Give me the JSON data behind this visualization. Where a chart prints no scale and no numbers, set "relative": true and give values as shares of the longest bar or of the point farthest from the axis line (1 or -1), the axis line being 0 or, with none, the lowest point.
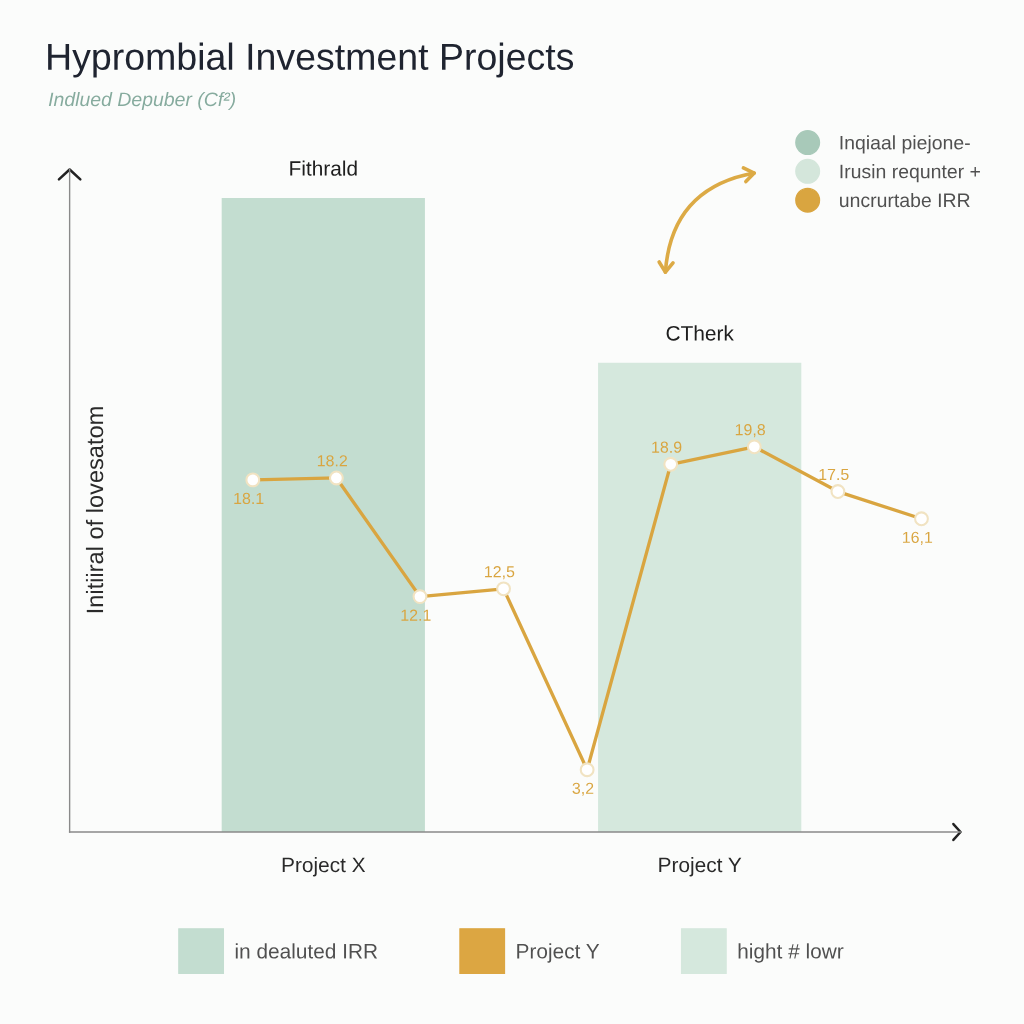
{
  "chart_data": [
    {
      "type": "bar",
      "title": "Hyprombial Investment Projects",
      "subtitle": "Indlued Depuber (Cf²)",
      "ylabel": "Initiiral of lovesatom",
      "categories": [
        "Project X",
        "Project Y"
      ],
      "relative": true,
      "legend": "bottom",
      "series": [
        {
          "name": "in dealuted IRR",
          "color": "#c3ddd0",
          "values": [
            1,
            null
          ]
        },
        {
          "name": "Project Y",
          "color": "#dca642",
          "values": [
            null,
            null
          ]
        },
        {
          "name": "hight # lowr",
          "color": "#d5e8dd",
          "values": [
            null,
            0.74
          ]
        }
      ],
      "annotations": [
        {
          "text": "Fithrald",
          "x": "Project X",
          "y": 1
        },
        {
          "text": "CTherk",
          "x": "Project Y",
          "y": 0.74
        }
      ]
    },
    {
      "type": "line",
      "categories": [
        null,
        null,
        null,
        null,
        null,
        null,
        null,
        null,
        null
      ],
      "tick_labels": false,
      "legend": "top right",
      "marker": "circle",
      "series": [
        {
          "name": "Inqiaal piejone-",
          "color": "#a8c9b9",
          "values": [
            null,
            null,
            null,
            null,
            null,
            null,
            null,
            null,
            null
          ]
        },
        {
          "name": "Irusin requnter +",
          "color": "#d4e6db",
          "values": [
            null,
            null,
            null,
            null,
            null,
            null,
            null,
            null,
            null
          ]
        },
        {
          "name": "uncrurtabe IRR",
          "color": "#d9a540",
          "values": [
            18.1,
            18.2,
            12.1,
            12.5,
            3.2,
            18.9,
            19.8,
            17.5,
            16.1
          ],
          "value_labels": [
            "18.1",
            "18.2",
            "12.1",
            "12,5",
            "3,2",
            "18.9",
            "19,8",
            "17.5",
            "16,1"
          ]
        }
      ]
    }
  ]
}
